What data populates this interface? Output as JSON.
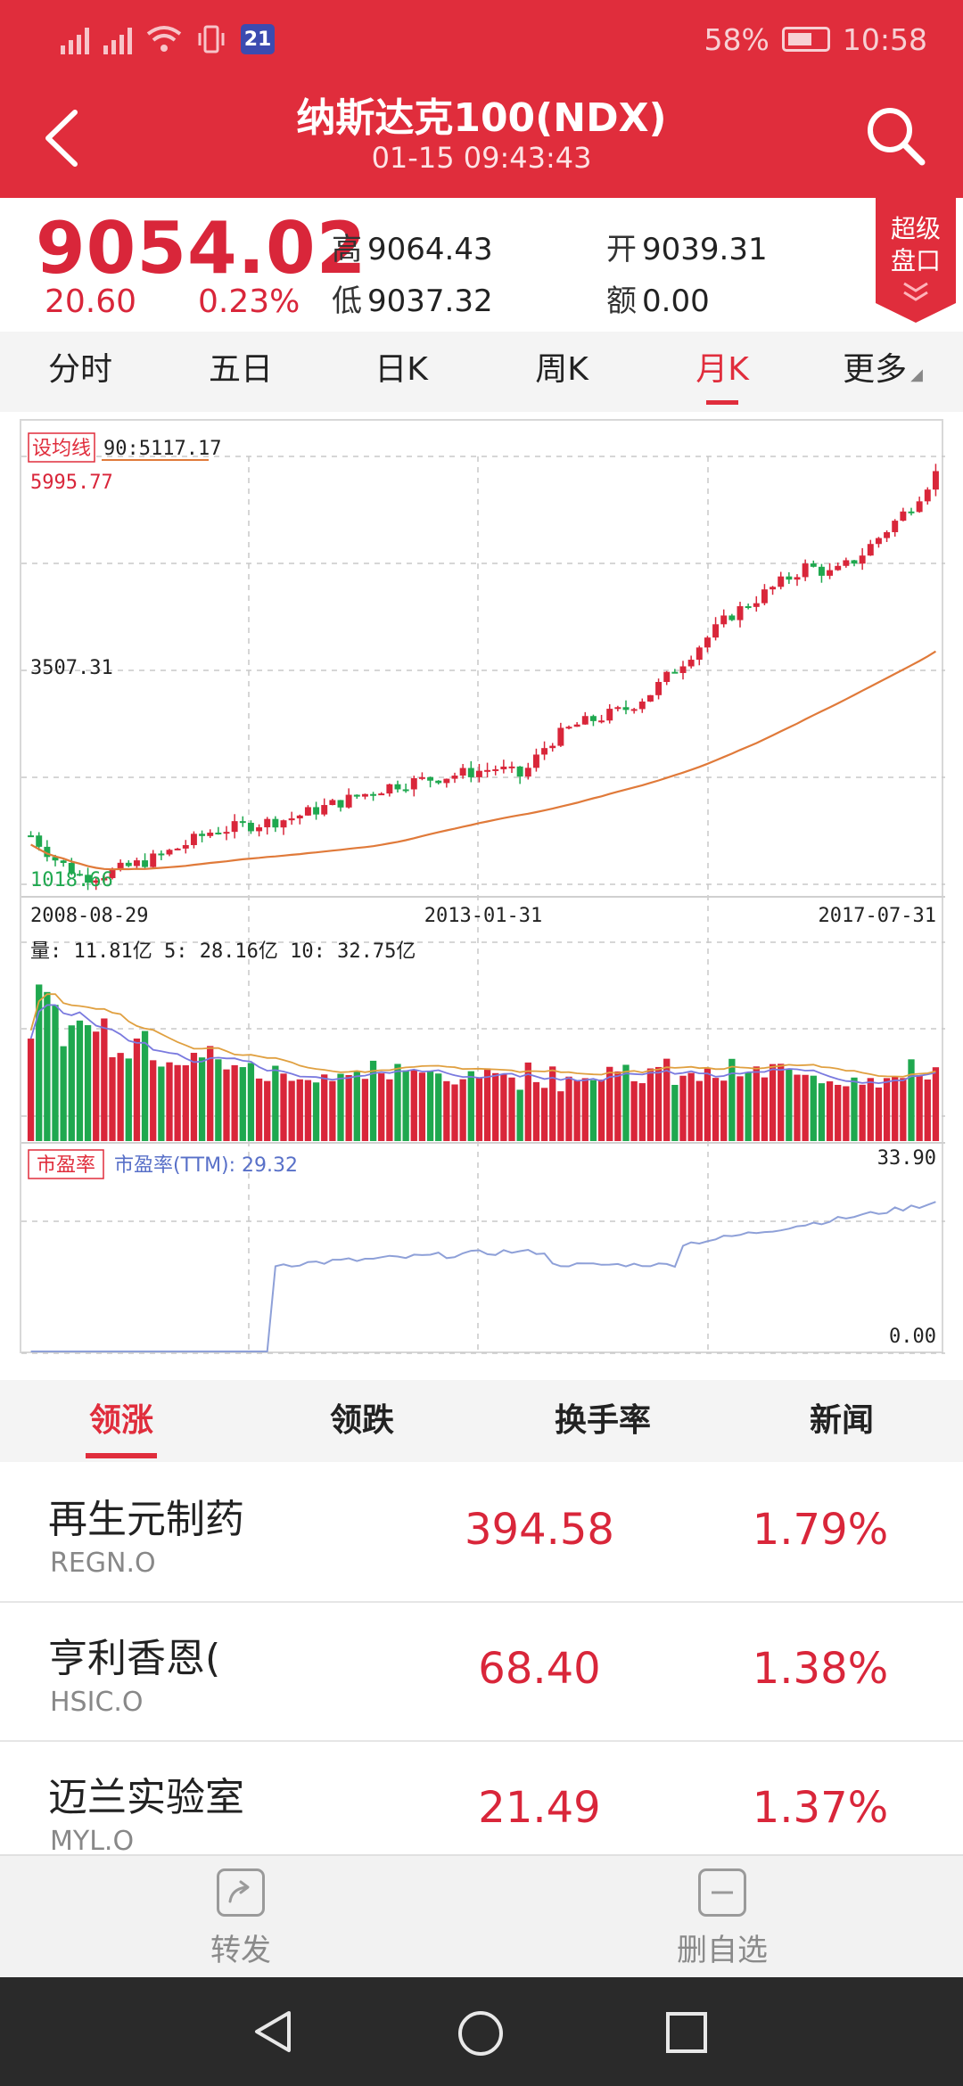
{
  "status_bar": {
    "badge": "21",
    "battery": "58%",
    "time": "10:58",
    "icons": [
      "signal-icon",
      "4g-signal-icon",
      "wifi-icon",
      "vibrate-icon",
      "app-badge-icon",
      "battery-icon"
    ]
  },
  "header": {
    "title": "纳斯达克100(NDX)",
    "subtitle": "01-15 09:43:43",
    "back_icon": "back-arrow-icon",
    "search_icon": "search-icon",
    "colors": {
      "bar": "#e02d3c",
      "up": "#d9263a",
      "down": "#1fa84f"
    }
  },
  "quote": {
    "price": "9054.02",
    "change": "20.60",
    "change_pct": "0.23%",
    "high_label": "高",
    "high": "9064.43",
    "open_label": "开",
    "open": "9039.31",
    "low_label": "低",
    "low": "9037.32",
    "amount_label": "额",
    "amount": "0.00",
    "super_line1": "超级",
    "super_line2": "盘口"
  },
  "period_tabs": [
    {
      "label": "分时"
    },
    {
      "label": "五日"
    },
    {
      "label": "日K"
    },
    {
      "label": "周K"
    },
    {
      "label": "月K",
      "active": true
    },
    {
      "label": "更多"
    }
  ],
  "chart": {
    "ma_button": "设均线",
    "ma_label": "90:5117.17",
    "price_high": "5995.77",
    "price_mid": "3507.31",
    "price_low": "1018.66",
    "date_left": "2008-08-29",
    "date_mid": "2013-01-31",
    "date_right": "2017-07-31",
    "volume_label": "量: 11.81亿  5: 28.16亿  10: 32.75亿",
    "pe_button": "市盈率",
    "pe_label": "市盈率(TTM): 29.32",
    "pe_max": "33.90",
    "pe_min": "0.00"
  },
  "chart_data": [
    {
      "type": "candlestick",
      "x_range": [
        "2008-08-29",
        "2017-12-29"
      ],
      "ylim": [
        1018.66,
        5995.77
      ],
      "grid": true,
      "series": [
        {
          "name": "90",
          "value": 5117.17
        }
      ],
      "monthly_close_approx": [
        1600,
        1300,
        1100,
        1150,
        1250,
        1350,
        1500,
        1650,
        1700,
        1750,
        1800,
        1900,
        2000,
        2100,
        2200,
        2250,
        2300,
        2350,
        2400,
        2300,
        2700,
        2900,
        3000,
        3100,
        3300,
        3600,
        3900,
        4200,
        4400,
        4600,
        4800,
        4700,
        4900,
        5200,
        5500,
        5900
      ]
    },
    {
      "type": "bar",
      "name": "volume",
      "labels": [
        "11.81亿",
        "28.16亿",
        "32.75亿"
      ]
    },
    {
      "type": "line",
      "name": "市盈率(TTM)",
      "ylim": [
        0,
        33.9
      ],
      "last_value": 29.32
    }
  ],
  "rank_tabs": [
    {
      "label": "领涨",
      "active": true
    },
    {
      "label": "领跌"
    },
    {
      "label": "换手率"
    },
    {
      "label": "新闻"
    }
  ],
  "stocks": [
    {
      "name": "再生元制药",
      "code": "REGN.O",
      "price": "394.58",
      "pct": "1.79%"
    },
    {
      "name": "亨利香恩(",
      "code": "HSIC.O",
      "price": "68.40",
      "pct": "1.38%"
    },
    {
      "name": "迈兰实验室",
      "code": "MYL.O",
      "price": "21.49",
      "pct": "1.37%"
    }
  ],
  "actions": {
    "forward": "转发",
    "remove": "删自选"
  },
  "nav": {
    "back_icon": "nav-back-icon",
    "home_icon": "nav-home-icon",
    "recents_icon": "nav-recents-icon"
  }
}
